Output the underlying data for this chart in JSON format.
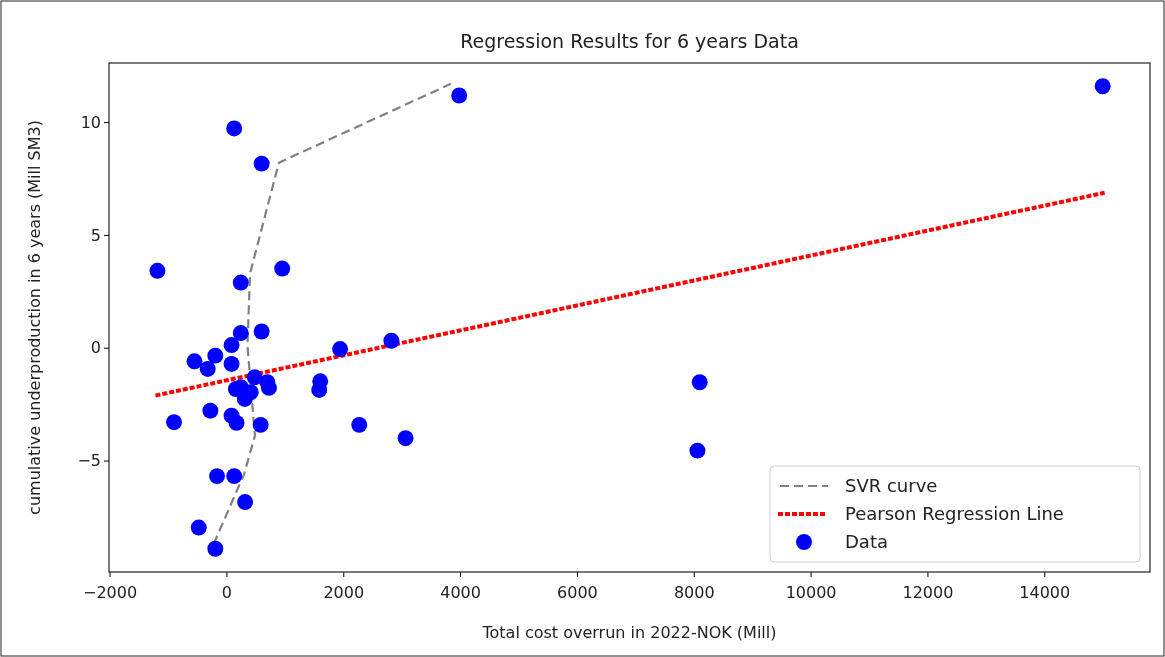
{
  "chart_data": {
    "type": "scatter",
    "title": "Regression Results for 6 years Data",
    "xlabel": "Total cost overrun in 2022-NOK (Mill)",
    "ylabel": "cumulative underproduction in 6 years (Mill SM3)",
    "xlim": [
      -2010,
      15810
    ],
    "ylim": [
      -9.94,
      12.62
    ],
    "xticks": [
      -2000,
      0,
      2000,
      4000,
      6000,
      8000,
      10000,
      12000,
      14000
    ],
    "yticks": [
      -5,
      0,
      5,
      10
    ],
    "grid": false,
    "legend": "bottom right",
    "series": [
      {
        "name": "SVR curve",
        "type": "line",
        "line_style": "dashed",
        "color": "#808080",
        "x": [
          -218,
          303,
          488,
          360,
          405,
          898,
          3843
        ],
        "values": [
          -8.7,
          -5.6,
          -3.9,
          0.1,
          3.3,
          8.2,
          11.7
        ]
      },
      {
        "name": "Pearson Regression Line",
        "type": "line",
        "line_style": "dotted",
        "color": "#ff0000",
        "x": [
          -1181,
          15000
        ],
        "values": [
          -2.1,
          6.85
        ]
      },
      {
        "name": "Data",
        "marker": "circle",
        "color": "#0000ff",
        "x": [
          133,
          603,
          -1181,
          955,
          246,
          246,
          603,
          88,
          -547,
          -190,
          -320,
          88,
          1946,
          2824,
          1606,
          1589,
          484,
          700,
          728,
          161,
          416,
          314,
          246,
          -275,
          -897,
          88,
          173,
          586,
          2274,
          3067,
          -161,
          133,
          320,
          -473,
          -190,
          3985,
          8102,
          8063,
          15000
        ],
        "values": [
          9.72,
          8.16,
          3.41,
          3.51,
          2.89,
          0.65,
          0.72,
          0.12,
          -0.6,
          -0.35,
          -0.94,
          -0.72,
          -0.06,
          0.31,
          -1.49,
          -1.87,
          -1.31,
          -1.53,
          -1.78,
          -1.83,
          -1.97,
          -2.27,
          -1.75,
          -2.79,
          -3.3,
          -3.01,
          -3.33,
          -3.42,
          -3.42,
          -4.01,
          -5.69,
          -5.69,
          -6.84,
          -7.97,
          -8.91,
          11.18,
          -1.53,
          -4.56,
          11.59
        ]
      }
    ]
  }
}
